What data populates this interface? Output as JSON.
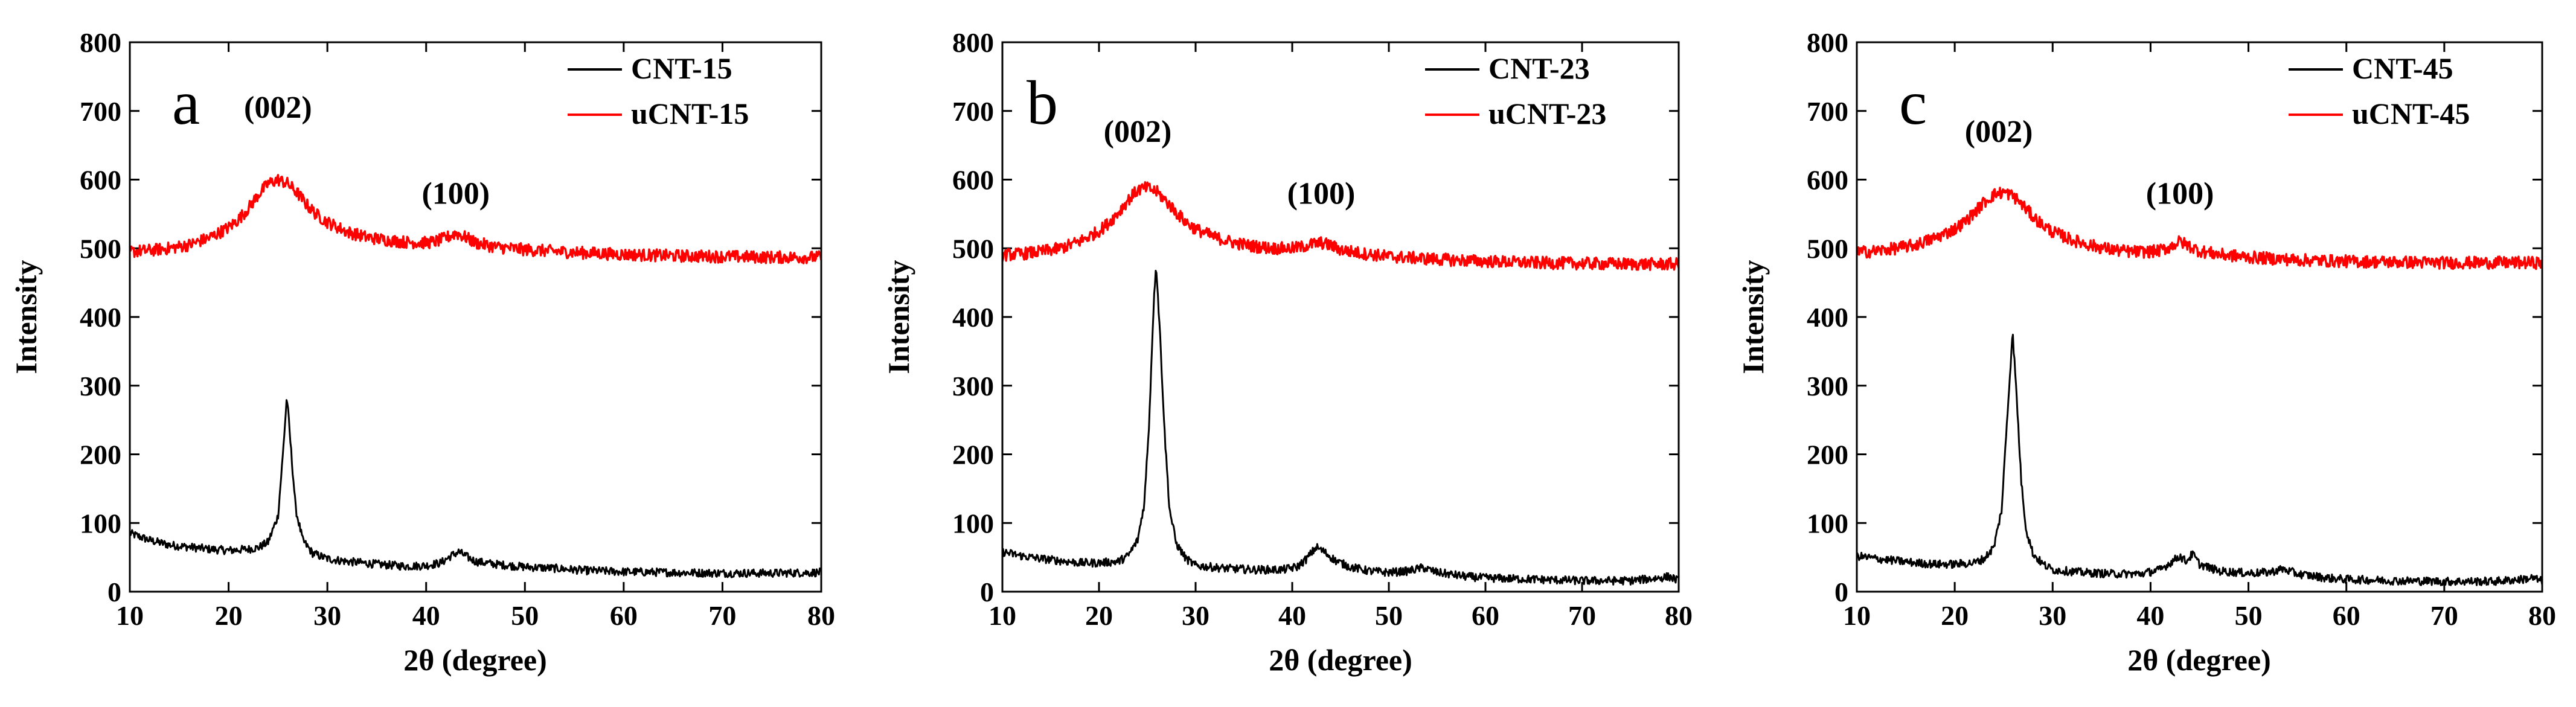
{
  "chart_data": [
    {
      "type": "line",
      "panel_letter": "a",
      "xlabel": "2θ (degree)",
      "ylabel": "Intensity",
      "xlim": [
        10,
        80
      ],
      "ylim": [
        0,
        800
      ],
      "xticks": [
        10,
        20,
        30,
        40,
        50,
        60,
        70,
        80
      ],
      "yticks": [
        0,
        100,
        200,
        300,
        400,
        500,
        600,
        700,
        800
      ],
      "legend_position": "top-right",
      "annotations": [
        {
          "text": "(002)",
          "x": 25,
          "y": 690
        },
        {
          "text": "(100)",
          "x": 43,
          "y": 565
        }
      ],
      "series": [
        {
          "name": "CNT-15",
          "color": "#000000",
          "points": [
            [
              10,
              85
            ],
            [
              12,
              75
            ],
            [
              14,
              68
            ],
            [
              16,
              65
            ],
            [
              18,
              62
            ],
            [
              20,
              60
            ],
            [
              22,
              62
            ],
            [
              23,
              64
            ],
            [
              24,
              72
            ],
            [
              25,
              110
            ],
            [
              25.5,
              200
            ],
            [
              25.9,
              285
            ],
            [
              26.3,
              210
            ],
            [
              26.8,
              120
            ],
            [
              27.5,
              75
            ],
            [
              28.5,
              56
            ],
            [
              30,
              48
            ],
            [
              32,
              44
            ],
            [
              35,
              40
            ],
            [
              38,
              37
            ],
            [
              40,
              38
            ],
            [
              41.5,
              42
            ],
            [
              42.5,
              52
            ],
            [
              43.3,
              58
            ],
            [
              44,
              52
            ],
            [
              45,
              44
            ],
            [
              47,
              40
            ],
            [
              50,
              36
            ],
            [
              53,
              34
            ],
            [
              56,
              31
            ],
            [
              60,
              29
            ],
            [
              65,
              28
            ],
            [
              70,
              27
            ],
            [
              75,
              27
            ],
            [
              80,
              28
            ]
          ]
        },
        {
          "name": "uCNT-15",
          "color": "#ff0000",
          "points": [
            [
              10,
              495
            ],
            [
              12,
              497
            ],
            [
              14,
              500
            ],
            [
              16,
              505
            ],
            [
              18,
              515
            ],
            [
              20,
              530
            ],
            [
              21,
              542
            ],
            [
              22,
              558
            ],
            [
              23,
              578
            ],
            [
              24,
              594
            ],
            [
              25,
              600
            ],
            [
              26,
              594
            ],
            [
              27,
              580
            ],
            [
              28,
              562
            ],
            [
              29,
              548
            ],
            [
              30,
              538
            ],
            [
              32,
              524
            ],
            [
              34,
              516
            ],
            [
              36,
              512
            ],
            [
              38,
              509
            ],
            [
              40,
              508
            ],
            [
              41,
              510
            ],
            [
              42,
              515
            ],
            [
              43,
              522
            ],
            [
              44,
              516
            ],
            [
              45,
              508
            ],
            [
              47,
              502
            ],
            [
              50,
              498
            ],
            [
              55,
              494
            ],
            [
              60,
              491
            ],
            [
              65,
              489
            ],
            [
              70,
              488
            ],
            [
              75,
              487
            ],
            [
              80,
              487
            ]
          ]
        }
      ]
    },
    {
      "type": "line",
      "panel_letter": "b",
      "xlabel": "2θ (degree)",
      "ylabel": "Intensity",
      "xlim": [
        10,
        80
      ],
      "ylim": [
        0,
        800
      ],
      "xticks": [
        10,
        20,
        30,
        40,
        50,
        60,
        70,
        80
      ],
      "yticks": [
        0,
        100,
        200,
        300,
        400,
        500,
        600,
        700,
        800
      ],
      "legend_position": "top-right",
      "annotations": [
        {
          "text": "(002)",
          "x": 24,
          "y": 655
        },
        {
          "text": "(100)",
          "x": 43,
          "y": 565
        }
      ],
      "series": [
        {
          "name": "CNT-23",
          "color": "#000000",
          "points": [
            [
              10,
              58
            ],
            [
              12,
              52
            ],
            [
              14,
              48
            ],
            [
              16,
              45
            ],
            [
              18,
              42
            ],
            [
              20,
              42
            ],
            [
              22,
              44
            ],
            [
              23,
              52
            ],
            [
              24,
              75
            ],
            [
              24.7,
              130
            ],
            [
              25.2,
              250
            ],
            [
              25.6,
              400
            ],
            [
              25.9,
              480
            ],
            [
              26.3,
              380
            ],
            [
              26.8,
              230
            ],
            [
              27.3,
              120
            ],
            [
              28,
              70
            ],
            [
              29,
              48
            ],
            [
              30,
              38
            ],
            [
              33,
              34
            ],
            [
              36,
              32
            ],
            [
              39,
              32
            ],
            [
              40.5,
              36
            ],
            [
              41.5,
              48
            ],
            [
              42.5,
              65
            ],
            [
              43.3,
              58
            ],
            [
              44.5,
              45
            ],
            [
              46,
              36
            ],
            [
              48,
              30
            ],
            [
              50,
              28
            ],
            [
              52,
              30
            ],
            [
              53.5,
              35
            ],
            [
              55,
              28
            ],
            [
              58,
              22
            ],
            [
              60,
              20
            ],
            [
              65,
              18
            ],
            [
              70,
              16
            ],
            [
              75,
              16
            ],
            [
              78,
              20
            ],
            [
              79,
              22
            ],
            [
              80,
              16
            ]
          ]
        },
        {
          "name": "uCNT-23",
          "color": "#ff0000",
          "points": [
            [
              10,
              490
            ],
            [
              12,
              492
            ],
            [
              14,
              495
            ],
            [
              16,
              500
            ],
            [
              18,
              510
            ],
            [
              20,
              525
            ],
            [
              21,
              537
            ],
            [
              22,
              552
            ],
            [
              23,
              570
            ],
            [
              24,
              585
            ],
            [
              25,
              588
            ],
            [
              26,
              582
            ],
            [
              27,
              568
            ],
            [
              28,
              552
            ],
            [
              29,
              538
            ],
            [
              30,
              528
            ],
            [
              32,
              516
            ],
            [
              34,
              508
            ],
            [
              36,
              503
            ],
            [
              38,
              500
            ],
            [
              40,
              500
            ],
            [
              41,
              502
            ],
            [
              42,
              506
            ],
            [
              43,
              508
            ],
            [
              44,
              504
            ],
            [
              45,
              498
            ],
            [
              47,
              493
            ],
            [
              50,
              488
            ],
            [
              55,
              484
            ],
            [
              60,
              481
            ],
            [
              65,
              479
            ],
            [
              70,
              478
            ],
            [
              75,
              477
            ],
            [
              80,
              477
            ]
          ]
        }
      ]
    },
    {
      "type": "line",
      "panel_letter": "c",
      "xlabel": "2θ (degree)",
      "ylabel": "Intensity",
      "xlim": [
        10,
        80
      ],
      "ylim": [
        0,
        800
      ],
      "xticks": [
        10,
        20,
        30,
        40,
        50,
        60,
        70,
        80
      ],
      "yticks": [
        0,
        100,
        200,
        300,
        400,
        500,
        600,
        700,
        800
      ],
      "legend_position": "top-right",
      "annotations": [
        {
          "text": "(002)",
          "x": 24.5,
          "y": 655
        },
        {
          "text": "(100)",
          "x": 43,
          "y": 565
        }
      ],
      "series": [
        {
          "name": "CNT-45",
          "color": "#000000",
          "points": [
            [
              10,
              52
            ],
            [
              12,
              48
            ],
            [
              14,
              45
            ],
            [
              16,
              42
            ],
            [
              18,
              40
            ],
            [
              20,
              40
            ],
            [
              22,
              42
            ],
            [
              23,
              48
            ],
            [
              24,
              65
            ],
            [
              24.8,
              120
            ],
            [
              25.3,
              240
            ],
            [
              25.7,
              330
            ],
            [
              25.9,
              380
            ],
            [
              26.3,
              290
            ],
            [
              26.8,
              160
            ],
            [
              27.3,
              90
            ],
            [
              28,
              55
            ],
            [
              29,
              40
            ],
            [
              30,
              32
            ],
            [
              33,
              28
            ],
            [
              36,
              26
            ],
            [
              39,
              26
            ],
            [
              41,
              32
            ],
            [
              42.3,
              45
            ],
            [
              43,
              52
            ],
            [
              43.6,
              44
            ],
            [
              44.3,
              55
            ],
            [
              45,
              40
            ],
            [
              47,
              30
            ],
            [
              50,
              27
            ],
            [
              52,
              28
            ],
            [
              53.5,
              33
            ],
            [
              55,
              26
            ],
            [
              58,
              20
            ],
            [
              60,
              18
            ],
            [
              65,
              16
            ],
            [
              70,
              15
            ],
            [
              75,
              15
            ],
            [
              78,
              18
            ],
            [
              79,
              20
            ],
            [
              80,
              15
            ]
          ]
        },
        {
          "name": "uCNT-45",
          "color": "#ff0000",
          "points": [
            [
              10,
              494
            ],
            [
              12,
              496
            ],
            [
              14,
              500
            ],
            [
              16,
              505
            ],
            [
              18,
              515
            ],
            [
              20,
              528
            ],
            [
              21,
              538
            ],
            [
              22,
              552
            ],
            [
              23,
              567
            ],
            [
              24,
              578
            ],
            [
              25,
              582
            ],
            [
              26,
              576
            ],
            [
              27,
              562
            ],
            [
              28,
              546
            ],
            [
              29,
              534
            ],
            [
              30,
              524
            ],
            [
              32,
              512
            ],
            [
              34,
              504
            ],
            [
              36,
              498
            ],
            [
              38,
              495
            ],
            [
              40,
              495
            ],
            [
              41,
              497
            ],
            [
              42,
              502
            ],
            [
              43,
              510
            ],
            [
              44,
              503
            ],
            [
              45,
              496
            ],
            [
              47,
              491
            ],
            [
              50,
              487
            ],
            [
              55,
              483
            ],
            [
              60,
              481
            ],
            [
              65,
              480
            ],
            [
              70,
              479
            ],
            [
              75,
              479
            ],
            [
              80,
              479
            ]
          ]
        }
      ]
    }
  ]
}
